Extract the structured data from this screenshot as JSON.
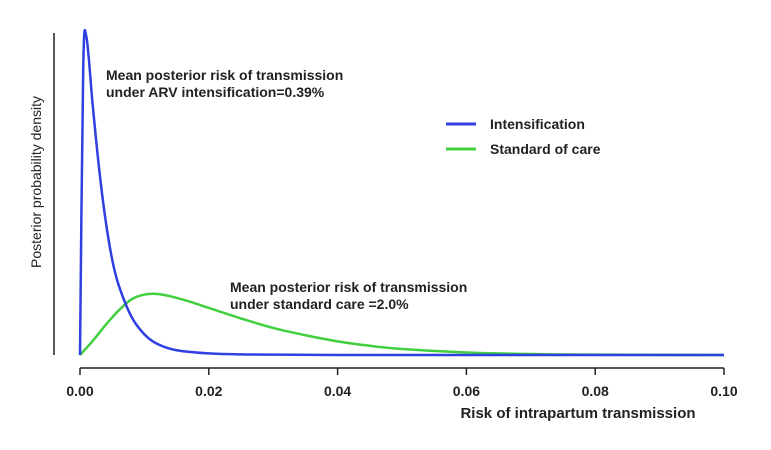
{
  "chart_data": {
    "type": "line",
    "title": "",
    "xlabel": "Risk of intrapartum transmission",
    "ylabel": "Posterior probability density",
    "xlim": [
      0.0,
      0.1
    ],
    "x_ticks": [
      "0.00",
      "0.02",
      "0.04",
      "0.06",
      "0.08",
      "0.10"
    ],
    "y_ticks_shown": false,
    "grid": false,
    "legend_position": "top-right",
    "series": [
      {
        "name": "Intensification",
        "color": "#2f3fe0",
        "x": [
          0.0,
          0.0005,
          0.001,
          0.002,
          0.003,
          0.004,
          0.005,
          0.006,
          0.008,
          0.01,
          0.012,
          0.015,
          0.02,
          0.025,
          0.03,
          0.04,
          0.05,
          0.06,
          0.07,
          0.1
        ],
        "y": [
          0.0,
          0.9,
          1.0,
          0.78,
          0.58,
          0.42,
          0.3,
          0.22,
          0.12,
          0.065,
          0.035,
          0.015,
          0.005,
          0.002,
          0.001,
          0.0,
          0.0,
          0.0,
          0.0,
          0.0
        ]
      },
      {
        "name": "Standard of care",
        "color": "#3fcf3f",
        "x": [
          0.0,
          0.002,
          0.004,
          0.006,
          0.008,
          0.01,
          0.012,
          0.014,
          0.017,
          0.02,
          0.025,
          0.03,
          0.035,
          0.04,
          0.045,
          0.05,
          0.06,
          0.07,
          0.08,
          0.1
        ],
        "y": [
          0.0,
          0.045,
          0.095,
          0.14,
          0.175,
          0.19,
          0.192,
          0.185,
          0.168,
          0.148,
          0.115,
          0.085,
          0.062,
          0.043,
          0.029,
          0.019,
          0.008,
          0.003,
          0.001,
          0.0
        ]
      }
    ],
    "annotations": [
      {
        "text_line1": "Mean posterior risk of transmission",
        "text_line2": "under ARV intensification=0.39%"
      },
      {
        "text_line1": "Mean posterior risk of transmission",
        "text_line2": "under standard care =2.0%"
      }
    ]
  }
}
